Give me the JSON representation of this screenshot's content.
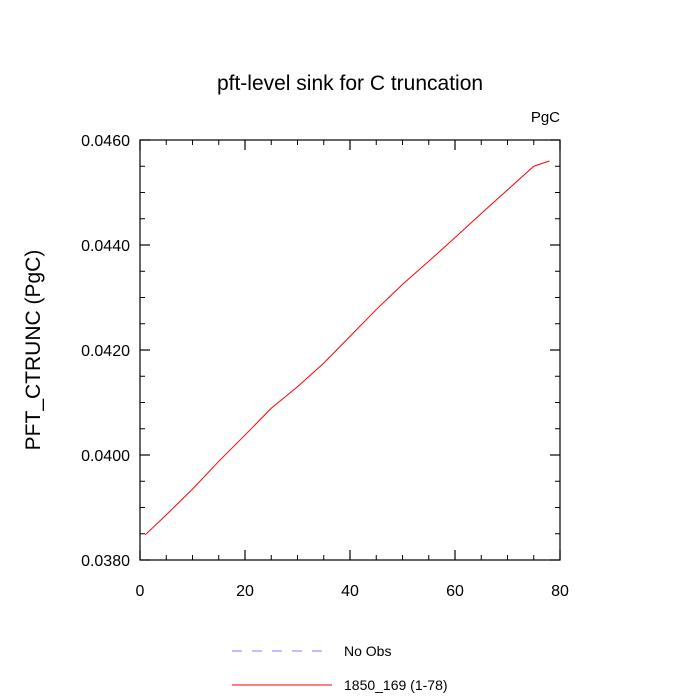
{
  "chart_data": {
    "type": "line",
    "title": "pft-level sink for C truncation",
    "units": "PgC",
    "ylabel": "PFT_CTRUNC  (PgC)",
    "xlabel": "",
    "xlim": [
      0,
      80
    ],
    "ylim": [
      0.038,
      0.046
    ],
    "x_ticks": [
      "0",
      "20",
      "40",
      "60",
      "80"
    ],
    "y_ticks": [
      "0.0380",
      "0.0400",
      "0.0420",
      "0.0440",
      "0.0460"
    ],
    "grid": false,
    "legend_position": "bottom-center",
    "legend": [
      {
        "label": "No Obs",
        "color": "#8080ff",
        "style": "dashed"
      },
      {
        "label": "1850_169 (1-78)",
        "color": "#ff0000",
        "style": "solid"
      }
    ],
    "series": [
      {
        "name": "1850_169 (1-78)",
        "color": "#ff0000",
        "x": [
          1,
          5,
          10,
          15,
          20,
          25,
          30,
          35,
          40,
          45,
          50,
          55,
          60,
          65,
          70,
          75,
          78
        ],
        "values": [
          0.03848,
          0.03886,
          0.03935,
          0.03988,
          0.04038,
          0.04089,
          0.0413,
          0.04175,
          0.04226,
          0.04277,
          0.04325,
          0.04369,
          0.04414,
          0.0446,
          0.04505,
          0.0455,
          0.0456
        ]
      }
    ]
  }
}
